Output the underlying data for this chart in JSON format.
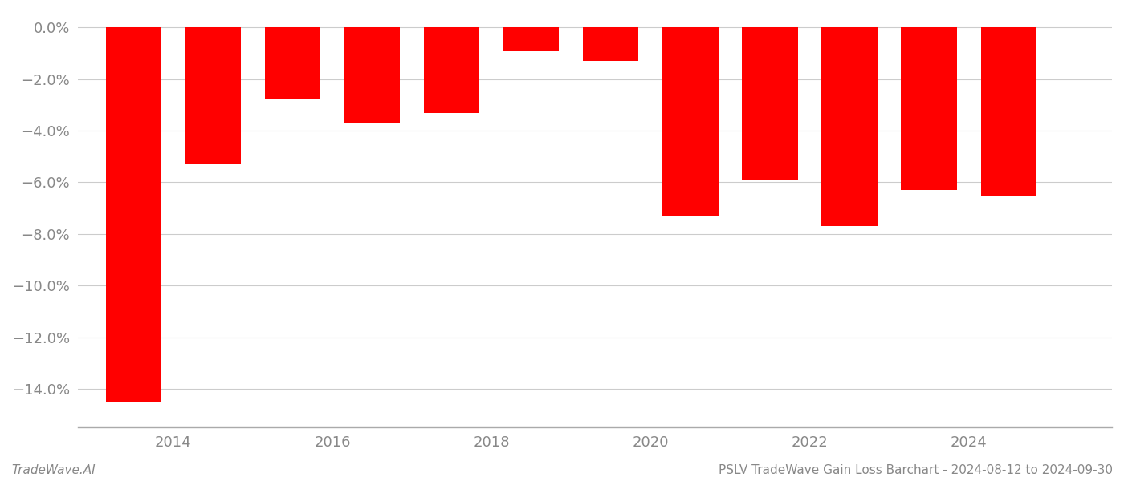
{
  "bar_positions": [
    2013.5,
    2014.5,
    2015.5,
    2016.5,
    2017.5,
    2018.5,
    2019.5,
    2020.5,
    2021.5,
    2022.5,
    2023.5,
    2024.5
  ],
  "values": [
    -14.5,
    -5.3,
    -2.8,
    -3.7,
    -3.3,
    -0.9,
    -1.3,
    -7.3,
    -5.9,
    -7.7,
    -6.3,
    -6.5
  ],
  "x_ticks": [
    2014,
    2016,
    2018,
    2020,
    2022,
    2024
  ],
  "x_tick_labels": [
    "2014",
    "2016",
    "2018",
    "2020",
    "2022",
    "2024"
  ],
  "bar_color": "#ff0000",
  "background_color": "#ffffff",
  "grid_color": "#cccccc",
  "axis_color": "#aaaaaa",
  "text_color": "#888888",
  "ylabel_values": [
    0.0,
    -2.0,
    -4.0,
    -6.0,
    -8.0,
    -10.0,
    -12.0,
    -14.0
  ],
  "ylabel_labels": [
    "0.0%",
    "−2.0%",
    "−4.0%",
    "−6.0%",
    "−8.0%",
    "−10.0%",
    "−12.0%",
    "−14.0%"
  ],
  "ylim_bottom": -15.5,
  "ylim_top": 0.6,
  "xlim_left": 2012.8,
  "xlim_right": 2025.8,
  "bar_width": 0.7,
  "footer_left": "TradeWave.AI",
  "footer_right": "PSLV TradeWave Gain Loss Barchart - 2024-08-12 to 2024-09-30",
  "tick_fontsize": 13,
  "footer_fontsize": 11
}
